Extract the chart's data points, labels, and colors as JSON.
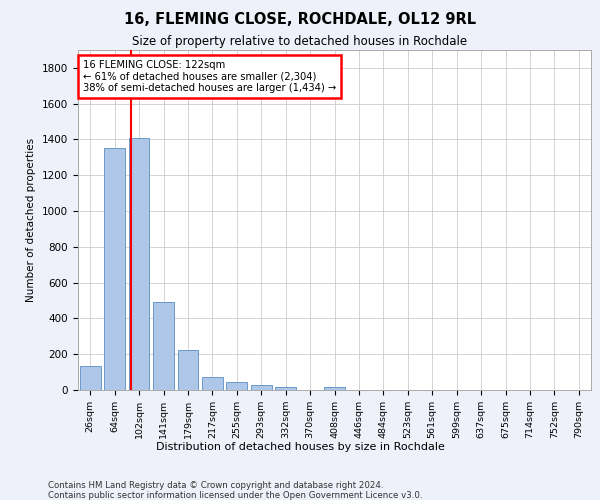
{
  "title1": "16, FLEMING CLOSE, ROCHDALE, OL12 9RL",
  "title2": "Size of property relative to detached houses in Rochdale",
  "xlabel": "Distribution of detached houses by size in Rochdale",
  "ylabel": "Number of detached properties",
  "bar_labels": [
    "26sqm",
    "64sqm",
    "102sqm",
    "141sqm",
    "179sqm",
    "217sqm",
    "255sqm",
    "293sqm",
    "332sqm",
    "370sqm",
    "408sqm",
    "446sqm",
    "484sqm",
    "523sqm",
    "561sqm",
    "599sqm",
    "637sqm",
    "675sqm",
    "714sqm",
    "752sqm",
    "790sqm"
  ],
  "bar_values": [
    135,
    1350,
    1410,
    490,
    225,
    75,
    45,
    28,
    15,
    0,
    18,
    0,
    0,
    0,
    0,
    0,
    0,
    0,
    0,
    0,
    0
  ],
  "bar_color": "#aec6e8",
  "bar_edge_color": "#5a8fc2",
  "annotation_line1": "16 FLEMING CLOSE: 122sqm",
  "annotation_line2": "← 61% of detached houses are smaller (2,304)",
  "annotation_line3": "38% of semi-detached houses are larger (1,434) →",
  "property_line_bar_index": 2,
  "ylim": [
    0,
    1900
  ],
  "yticks": [
    0,
    200,
    400,
    600,
    800,
    1000,
    1200,
    1400,
    1600,
    1800
  ],
  "bg_color": "#eef1fa",
  "plot_bg_color": "#ffffff",
  "grid_color": "#cccccc",
  "footer_line1": "Contains HM Land Registry data © Crown copyright and database right 2024.",
  "footer_line2": "Contains public sector information licensed under the Open Government Licence v3.0."
}
